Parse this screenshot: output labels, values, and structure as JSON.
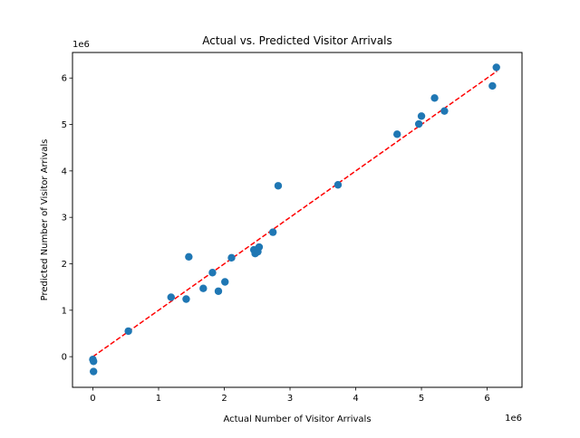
{
  "chart_data": {
    "type": "scatter",
    "title": "Actual vs. Predicted Visitor Arrivals",
    "xlabel": "Actual Number of Visitor Arrivals",
    "ylabel": "Predicted Number of Visitor Arrivals",
    "x_offset_label": "1e6",
    "y_offset_label": "1e6",
    "xlim": [
      -310000,
      6530000
    ],
    "ylim": [
      -660000,
      6550000
    ],
    "x_ticks": [
      0,
      1000000,
      2000000,
      3000000,
      4000000,
      5000000,
      6000000
    ],
    "x_tick_labels": [
      "0",
      "1",
      "2",
      "3",
      "4",
      "5",
      "6"
    ],
    "y_ticks": [
      0,
      1000000,
      2000000,
      3000000,
      4000000,
      5000000,
      6000000
    ],
    "y_tick_labels": [
      "0",
      "1",
      "2",
      "3",
      "4",
      "5",
      "6"
    ],
    "grid": false,
    "point_color": "#1f77b4",
    "reference_line": {
      "style": "dashed",
      "color": "#ff0000",
      "x": [
        0,
        6150000
      ],
      "y": [
        0,
        6150000
      ]
    },
    "points": [
      {
        "x": 0,
        "y": -60000
      },
      {
        "x": 10000,
        "y": -100000
      },
      {
        "x": 10000,
        "y": -320000
      },
      {
        "x": 540000,
        "y": 550000
      },
      {
        "x": 1190000,
        "y": 1280000
      },
      {
        "x": 1420000,
        "y": 1240000
      },
      {
        "x": 1460000,
        "y": 2150000
      },
      {
        "x": 1680000,
        "y": 1470000
      },
      {
        "x": 1820000,
        "y": 1810000
      },
      {
        "x": 1910000,
        "y": 1410000
      },
      {
        "x": 2010000,
        "y": 1610000
      },
      {
        "x": 2110000,
        "y": 2130000
      },
      {
        "x": 2450000,
        "y": 2300000
      },
      {
        "x": 2470000,
        "y": 2220000
      },
      {
        "x": 2510000,
        "y": 2260000
      },
      {
        "x": 2530000,
        "y": 2360000
      },
      {
        "x": 2740000,
        "y": 2680000
      },
      {
        "x": 2820000,
        "y": 3680000
      },
      {
        "x": 3730000,
        "y": 3700000
      },
      {
        "x": 4630000,
        "y": 4790000
      },
      {
        "x": 4960000,
        "y": 5010000
      },
      {
        "x": 5000000,
        "y": 5180000
      },
      {
        "x": 5200000,
        "y": 5570000
      },
      {
        "x": 5350000,
        "y": 5290000
      },
      {
        "x": 6080000,
        "y": 5830000
      },
      {
        "x": 6140000,
        "y": 6230000
      }
    ]
  }
}
